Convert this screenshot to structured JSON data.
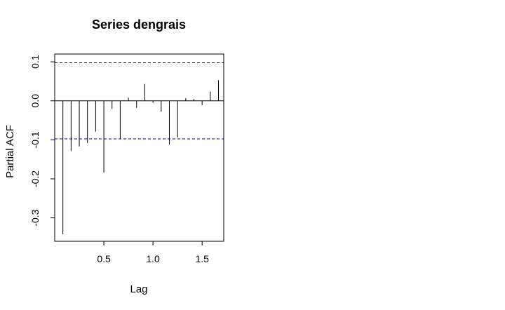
{
  "chart_data": {
    "type": "bar",
    "title": "Series  dengrais",
    "xlabel": "Lag",
    "ylabel": "Partial ACF",
    "xlim": [
      0.0,
      1.72
    ],
    "ylim": [
      -0.36,
      0.12
    ],
    "x_ticks": [
      0.5,
      1.0,
      1.5
    ],
    "x_tick_labels": [
      "0.5",
      "1.0",
      "1.5"
    ],
    "y_ticks": [
      -0.3,
      -0.2,
      -0.1,
      0.0,
      0.1
    ],
    "y_tick_labels": [
      "-0.3",
      "-0.2",
      "-0.1",
      "0.0",
      "0.1"
    ],
    "confidence_bounds": [
      0.0976,
      -0.0976
    ],
    "confidence_color": "#0000cc",
    "series": [
      {
        "x": [
          0.0833,
          0.1667,
          0.25,
          0.3333,
          0.4167,
          0.5,
          0.5833,
          0.6667,
          0.75,
          0.8333,
          0.9167,
          1.0,
          1.0833,
          1.1667,
          1.25,
          1.3333,
          1.4167,
          1.5,
          1.5833,
          1.6667
        ],
        "values": [
          -0.342,
          -0.129,
          -0.117,
          -0.108,
          -0.079,
          -0.184,
          -0.021,
          -0.097,
          0.008,
          -0.018,
          0.043,
          -0.005,
          -0.028,
          -0.112,
          -0.094,
          0.007,
          0.005,
          -0.011,
          0.024,
          0.053
        ]
      }
    ]
  }
}
